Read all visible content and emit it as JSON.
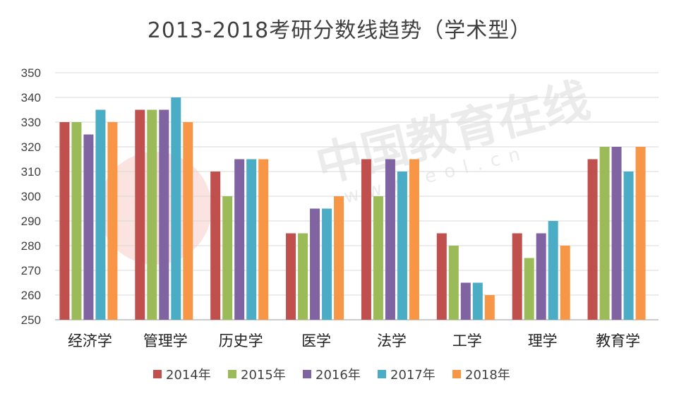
{
  "chart_data": {
    "type": "bar",
    "title": "2013-2018考研分数线趋势（学术型）",
    "categories": [
      "经济学",
      "管理学",
      "历史学",
      "医学",
      "法学",
      "工学",
      "理学",
      "教育学"
    ],
    "series": [
      {
        "name": "2014年",
        "color": "#c0504d",
        "values": [
          330,
          335,
          310,
          285,
          315,
          285,
          285,
          315
        ]
      },
      {
        "name": "2015年",
        "color": "#9bbb59",
        "values": [
          330,
          335,
          300,
          285,
          300,
          280,
          275,
          320
        ]
      },
      {
        "name": "2016年",
        "color": "#8064a2",
        "values": [
          325,
          335,
          315,
          295,
          315,
          265,
          285,
          320
        ]
      },
      {
        "name": "2017年",
        "color": "#4bacc6",
        "values": [
          335,
          340,
          315,
          295,
          310,
          265,
          290,
          310
        ]
      },
      {
        "name": "2018年",
        "color": "#f79646",
        "values": [
          330,
          330,
          315,
          300,
          315,
          260,
          280,
          320
        ]
      }
    ],
    "ylim": [
      250,
      350
    ],
    "yticks": [
      250,
      260,
      270,
      280,
      290,
      300,
      310,
      320,
      330,
      340,
      350
    ],
    "grid": true,
    "legend": "bottom"
  },
  "watermark": {
    "text": "中国教育在线",
    "url": "www.eol.cn"
  }
}
